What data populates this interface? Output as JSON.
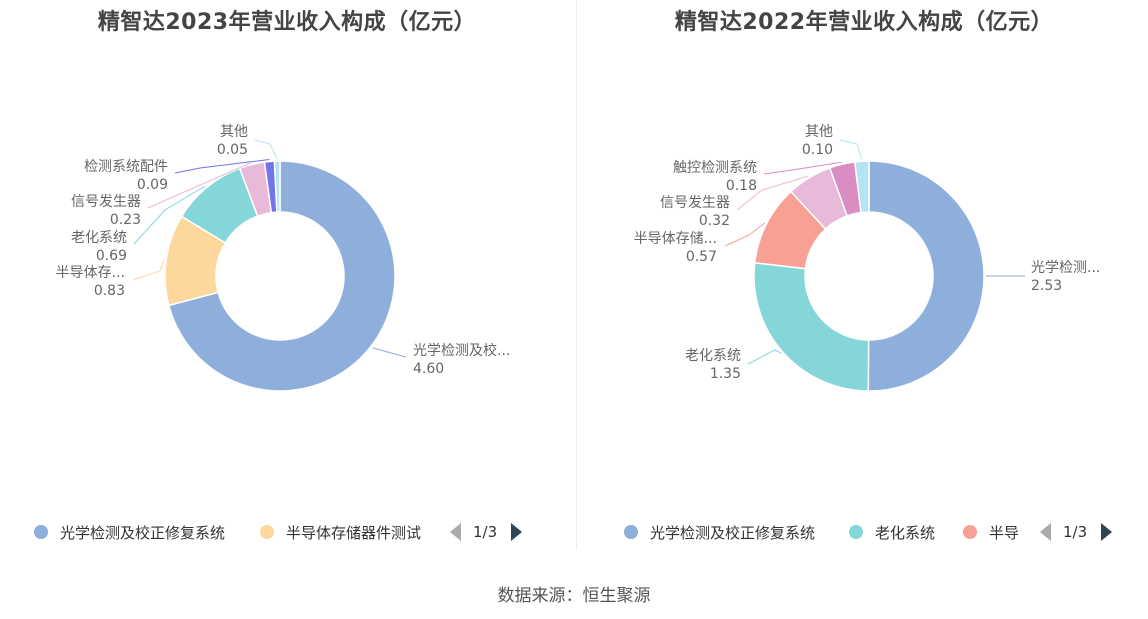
{
  "colors": {
    "optical": "#8eaedb",
    "semiconductor": "#fdd89d",
    "aging": "#85d6d9",
    "signal_gen": "#e9b9d9",
    "test_parts": "#7373ec",
    "touch": "#da8dc3",
    "other": "#b3e3f4",
    "semiconductor_storage_2022": "#f9a095"
  },
  "chart_data": [
    {
      "type": "pie",
      "title": "精智达2023年营业收入构成（亿元）",
      "slices": [
        {
          "label": "光学检测及校...",
          "value": 4.6,
          "value_text": "4.60",
          "color_key": "optical"
        },
        {
          "label": "半导体存...",
          "value": 0.83,
          "value_text": "0.83",
          "color_key": "semiconductor"
        },
        {
          "label": "老化系统",
          "value": 0.69,
          "value_text": "0.69",
          "color_key": "aging"
        },
        {
          "label": "信号发生器",
          "value": 0.23,
          "value_text": "0.23",
          "color_key": "signal_gen"
        },
        {
          "label": "检测系统配件",
          "value": 0.09,
          "value_text": "0.09",
          "color_key": "test_parts"
        },
        {
          "label": "其他",
          "value": 0.05,
          "value_text": "0.05",
          "color_key": "other"
        }
      ],
      "legend": {
        "items": [
          {
            "label": "光学检测及校正修复系统",
            "color_key": "optical"
          },
          {
            "label": "半导体存储器件测试",
            "color_key": "semiconductor"
          }
        ],
        "page": "1/3"
      }
    },
    {
      "type": "pie",
      "title": "精智达2022年营业收入构成（亿元）",
      "slices": [
        {
          "label": "光学检测...",
          "value": 2.53,
          "value_text": "2.53",
          "color_key": "optical"
        },
        {
          "label": "老化系统",
          "value": 1.35,
          "value_text": "1.35",
          "color_key": "aging"
        },
        {
          "label": "半导体存储...",
          "value": 0.57,
          "value_text": "0.57",
          "color_key": "semiconductor_storage_2022"
        },
        {
          "label": "信号发生器",
          "value": 0.32,
          "value_text": "0.32",
          "color_key": "signal_gen"
        },
        {
          "label": "触控检测系统",
          "value": 0.18,
          "value_text": "0.18",
          "color_key": "touch"
        },
        {
          "label": "其他",
          "value": 0.1,
          "value_text": "0.10",
          "color_key": "other"
        }
      ],
      "legend": {
        "items": [
          {
            "label": "光学检测及校正修复系统",
            "color_key": "optical"
          },
          {
            "label": "老化系统",
            "color_key": "aging"
          },
          {
            "label": "半导",
            "color_key": "semiconductor_storage_2022"
          }
        ],
        "page": "1/3"
      }
    }
  ],
  "source": "数据来源：恒生聚源"
}
